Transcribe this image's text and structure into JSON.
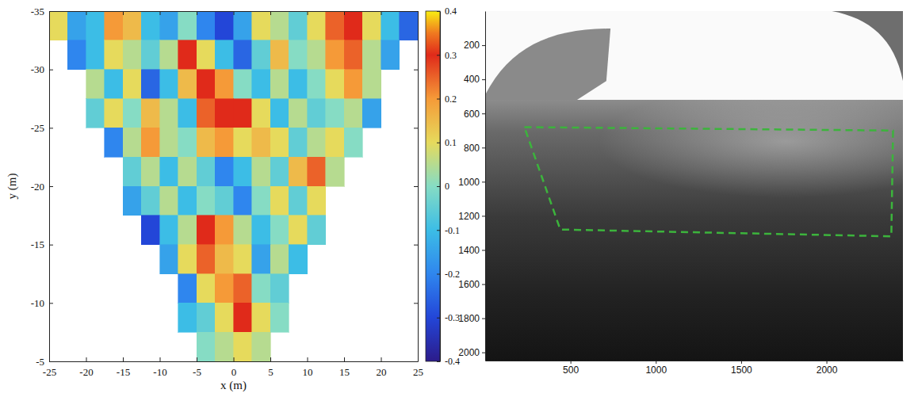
{
  "chart_data": [
    {
      "type": "heatmap",
      "xlabel": "x (m)",
      "ylabel": "y (m)",
      "xlim": [
        -25,
        25
      ],
      "ylim": [
        -5,
        -35
      ],
      "xticks": [
        -25,
        -20,
        -15,
        -10,
        -5,
        0,
        5,
        10,
        15,
        20,
        25
      ],
      "yticks": [
        -35,
        -30,
        -25,
        -20,
        -15,
        -10,
        -5
      ],
      "x_edges": [
        -25,
        -22.5,
        -20,
        -17.5,
        -15,
        -12.5,
        -10,
        -7.5,
        -5,
        -2.5,
        0,
        2.5,
        5,
        7.5,
        10,
        12.5,
        15,
        17.5,
        20,
        22.5,
        25
      ],
      "y_edges": [
        -35,
        -32.5,
        -30,
        -27.5,
        -25,
        -22.5,
        -20,
        -17.5,
        -15,
        -12.5,
        -10,
        -7.5,
        -5
      ],
      "values": [
        [
          0.1,
          -0.15,
          -0.1,
          0.2,
          0.15,
          -0.1,
          -0.15,
          0,
          -0.2,
          -0.3,
          -0.15,
          0.1,
          0.05,
          -0.05,
          0.1,
          0.25,
          0.3,
          0.1,
          -0.1,
          -0.25
        ],
        [
          null,
          -0.2,
          -0.1,
          0.1,
          0.05,
          -0.05,
          0.05,
          0.3,
          0.1,
          -0.1,
          -0.25,
          -0.05,
          0.15,
          0,
          0.05,
          0.2,
          0.25,
          0.05,
          -0.15,
          null
        ],
        [
          null,
          null,
          0.05,
          -0.1,
          0.1,
          -0.25,
          -0.1,
          0.15,
          0.3,
          0.2,
          0,
          -0.1,
          0.05,
          -0.1,
          0,
          0.1,
          0.2,
          0.05,
          null,
          null
        ],
        [
          null,
          null,
          -0.05,
          0.1,
          0,
          0.15,
          0.05,
          -0.1,
          0.25,
          0.3,
          0.3,
          0.1,
          -0.1,
          0.05,
          -0.05,
          0,
          0.05,
          -0.15,
          null,
          null
        ],
        [
          null,
          null,
          null,
          -0.2,
          0.05,
          0.2,
          0.05,
          0,
          0.15,
          0.2,
          0.1,
          0.15,
          0.1,
          -0.05,
          0.05,
          0.1,
          0,
          null,
          null,
          null
        ],
        [
          null,
          null,
          null,
          null,
          -0.05,
          0.05,
          -0.1,
          0.05,
          -0.05,
          -0.2,
          -0.1,
          0.05,
          -0.05,
          0.15,
          0.25,
          0.05,
          null,
          null,
          null,
          null
        ],
        [
          null,
          null,
          null,
          null,
          -0.15,
          -0.05,
          0.05,
          -0.1,
          0,
          -0.05,
          -0.2,
          0,
          0.1,
          -0.05,
          0.1,
          null,
          null,
          null,
          null,
          null
        ],
        [
          null,
          null,
          null,
          null,
          null,
          -0.3,
          -0.1,
          0.05,
          0.3,
          0.2,
          0.05,
          -0.1,
          0,
          0.1,
          -0.05,
          null,
          null,
          null,
          null,
          null
        ],
        [
          null,
          null,
          null,
          null,
          null,
          null,
          -0.15,
          0.1,
          0.25,
          0.15,
          0.1,
          -0.15,
          0.05,
          -0.1,
          null,
          null,
          null,
          null,
          null,
          null
        ],
        [
          null,
          null,
          null,
          null,
          null,
          null,
          null,
          -0.2,
          0.1,
          0.2,
          0.25,
          0,
          -0.05,
          null,
          null,
          null,
          null,
          null,
          null,
          null
        ],
        [
          null,
          null,
          null,
          null,
          null,
          null,
          null,
          -0.1,
          -0.05,
          0.1,
          0.3,
          0.1,
          0,
          null,
          null,
          null,
          null,
          null,
          null,
          null
        ],
        [
          null,
          null,
          null,
          null,
          null,
          null,
          null,
          null,
          0,
          0.05,
          0.1,
          0.05,
          null,
          null,
          null,
          null,
          null,
          null,
          null,
          null
        ]
      ],
      "colorbar": {
        "lim": [
          -0.4,
          0.4
        ],
        "ticks": [
          -0.4,
          -0.3,
          -0.2,
          -0.1,
          0,
          0.1,
          0.2,
          0.3,
          0.4
        ]
      }
    },
    {
      "type": "image",
      "xlim": [
        0,
        2448
      ],
      "ylim": [
        2048,
        0
      ],
      "xticks": [
        500,
        1000,
        1500,
        2000
      ],
      "yticks": [
        200,
        400,
        600,
        800,
        1000,
        1200,
        1400,
        1600,
        1800,
        2000
      ],
      "horizon": 520,
      "polygon": {
        "x": [
          230,
          2390,
          2380,
          440
        ],
        "y": [
          680,
          700,
          1320,
          1280
        ],
        "color": "#3cb43c",
        "line_style": "dashed"
      }
    }
  ]
}
